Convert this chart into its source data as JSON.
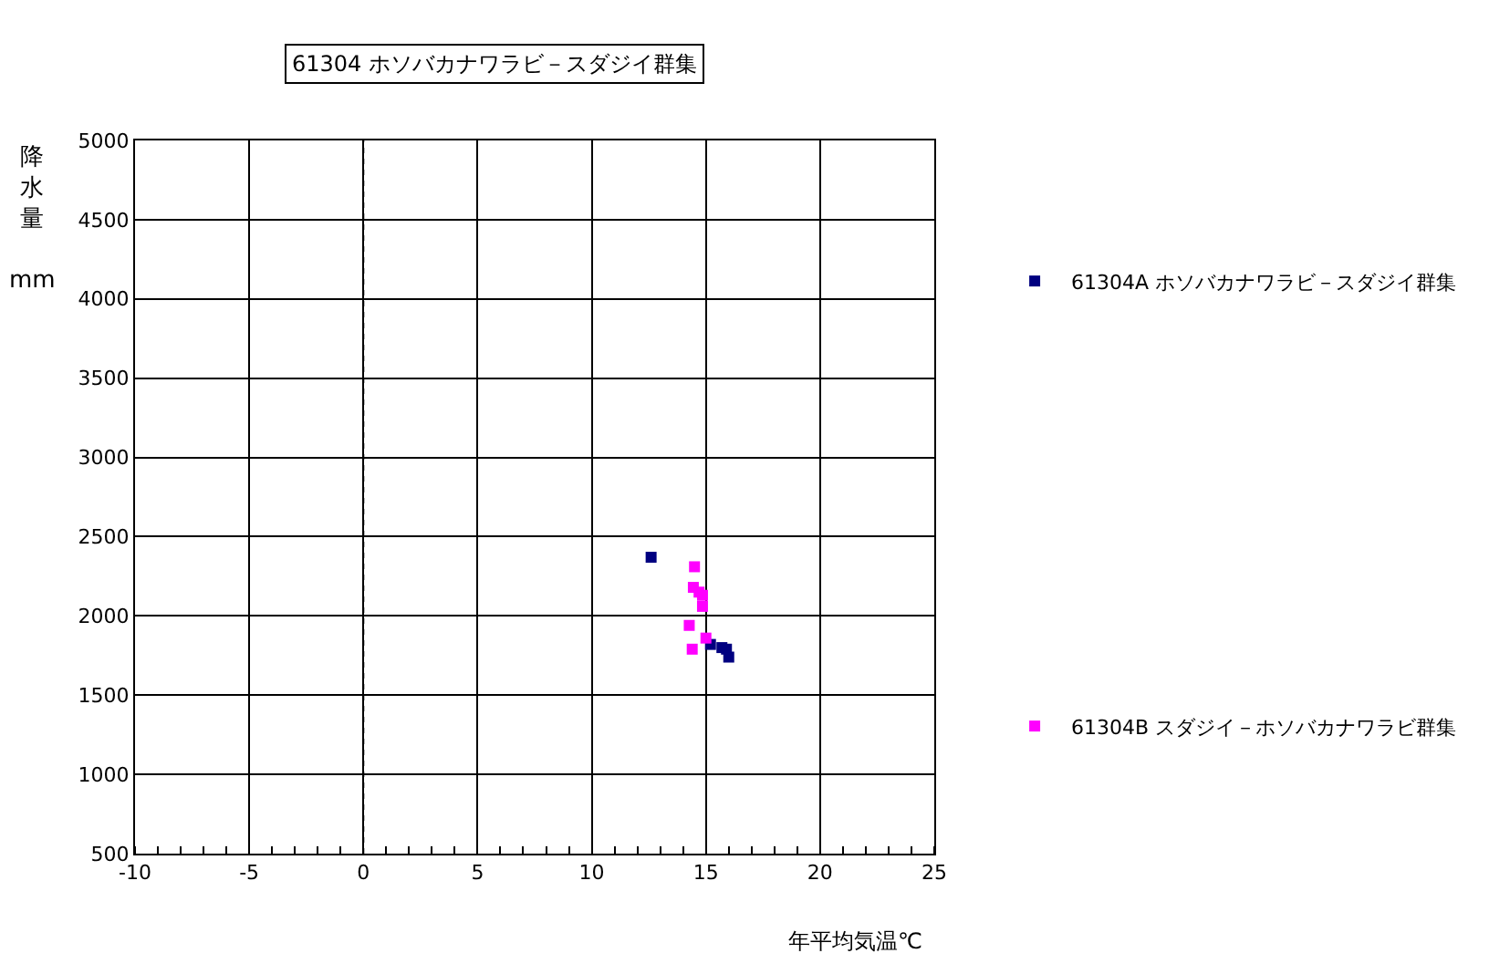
{
  "chart_data": {
    "type": "scatter",
    "title": "61304 ホソバカナワラビ－スダジイ群集",
    "xlabel": "年平均気温℃",
    "ylabel": "降水量 mm",
    "series": [
      {
        "name": "61304A ホソバカナワラビ－スダジイ群集",
        "color": "#000080",
        "x": [
          12.6,
          15.2,
          15.7,
          15.9,
          16.0
        ],
        "values": [
          2370,
          1820,
          1800,
          1790,
          1740
        ]
      },
      {
        "name": "61304B スダジイ－ホソバカナワラビ群集",
        "color": "#ff00ff",
        "x": [
          14.5,
          14.45,
          14.7,
          14.85,
          14.85,
          14.27,
          15.0,
          14.4
        ],
        "values": [
          2310,
          2180,
          2150,
          2130,
          2060,
          1940,
          1860,
          1790
        ]
      }
    ],
    "xlim": [
      -10,
      25
    ],
    "xticks": [
      -10,
      -5,
      0,
      5,
      10,
      15,
      20,
      25
    ],
    "ylim": [
      500,
      5000
    ],
    "yticks": [
      500,
      1000,
      1500,
      2000,
      2500,
      3000,
      3500,
      4000,
      4500,
      5000
    ],
    "ref_lines": [
      {
        "axis": "x",
        "value": 0,
        "line_style": "dotted",
        "color": "#000000"
      }
    ],
    "grid": true,
    "legend": "right",
    "marker": "square"
  }
}
